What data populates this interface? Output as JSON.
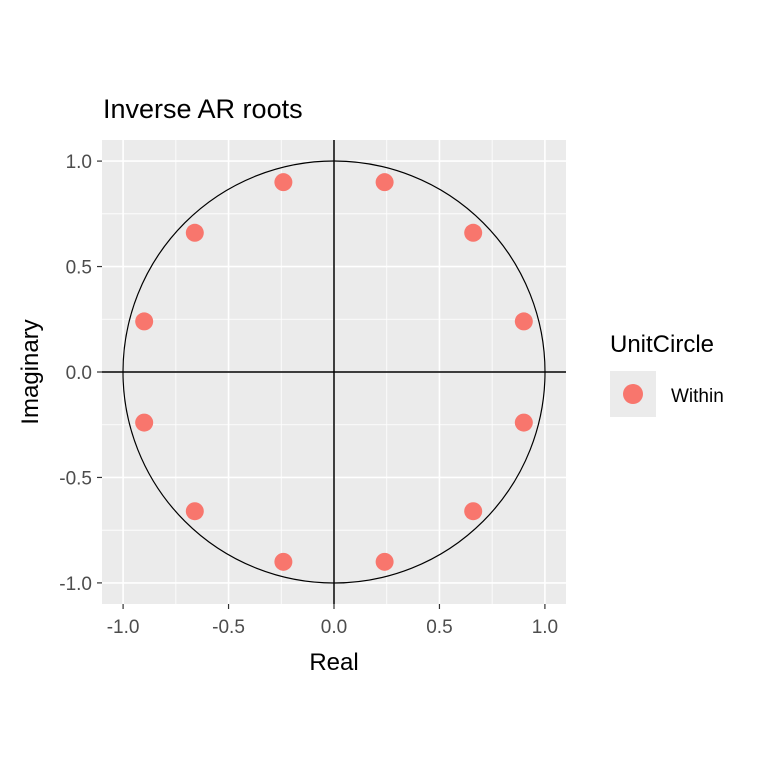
{
  "chart_data": {
    "type": "scatter",
    "title": "Inverse AR roots",
    "xlabel": "Real",
    "ylabel": "Imaginary",
    "xlim": [
      -1.1,
      1.1
    ],
    "ylim": [
      -1.1,
      1.1
    ],
    "x_ticks": [
      -1.0,
      -0.5,
      0.0,
      0.5,
      1.0
    ],
    "y_ticks": [
      -1.0,
      -0.5,
      0.0,
      0.5,
      1.0
    ],
    "x_tick_labels": [
      "-1.0",
      "-0.5",
      "0.0",
      "0.5",
      "1.0"
    ],
    "y_tick_labels": [
      "-1.0",
      "-0.5",
      "0.0",
      "0.5",
      "1.0"
    ],
    "grid": true,
    "unit_circle": true,
    "legend": {
      "title": "UnitCircle",
      "placement": "right",
      "entries": [
        {
          "label": "Within",
          "color": "#f8766d"
        }
      ]
    },
    "series": [
      {
        "name": "Within",
        "color": "#f8766d",
        "points": [
          {
            "x": 0.24,
            "y": 0.9
          },
          {
            "x": 0.66,
            "y": 0.66
          },
          {
            "x": 0.9,
            "y": 0.24
          },
          {
            "x": 0.9,
            "y": -0.24
          },
          {
            "x": 0.66,
            "y": -0.66
          },
          {
            "x": 0.24,
            "y": -0.9
          },
          {
            "x": -0.24,
            "y": -0.9
          },
          {
            "x": -0.66,
            "y": -0.66
          },
          {
            "x": -0.9,
            "y": -0.24
          },
          {
            "x": -0.9,
            "y": 0.24
          },
          {
            "x": -0.66,
            "y": 0.66
          },
          {
            "x": -0.24,
            "y": 0.9
          }
        ]
      }
    ]
  },
  "colors": {
    "panel_background": "#ebebeb",
    "grid": "#ffffff",
    "axis_text": "#4d4d4d",
    "title_text": "#000000",
    "point": "#f8766d"
  }
}
